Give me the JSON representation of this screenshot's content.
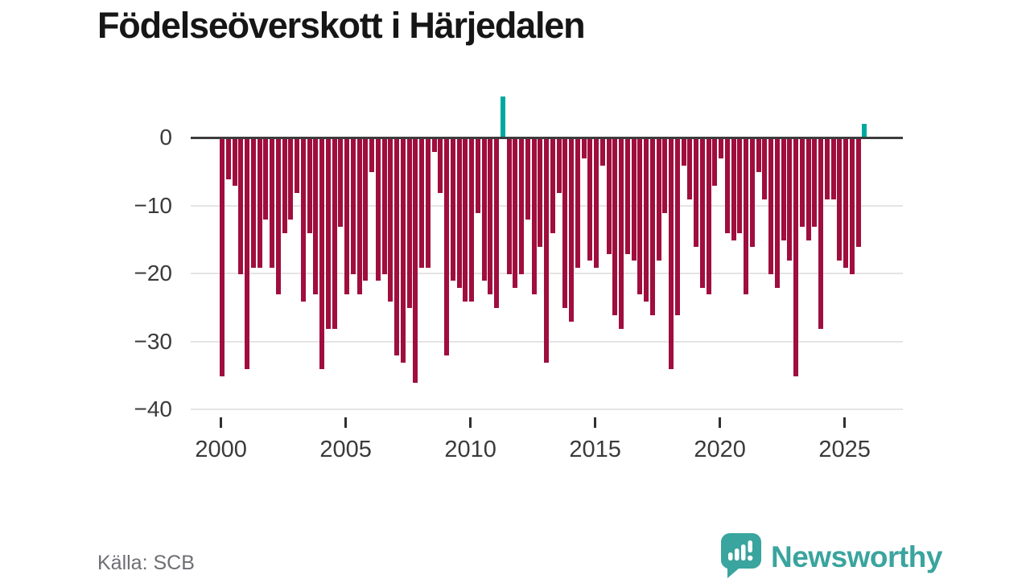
{
  "header": {
    "title": "Födelseöverskott i Härjedalen"
  },
  "footer": {
    "source": "Källa: SCB",
    "logo_text": "Newsworthy"
  },
  "colors": {
    "negative_bar": "#a00e3e",
    "positive_bar": "#00a9a0",
    "logo_teal": "#3aa49e",
    "axis_line": "#3d3d3d",
    "gridline": "#e4e4e4",
    "title_text": "#161616",
    "tick_text": "#3a3a3a",
    "source_text": "#6e6e75"
  },
  "chart_data": {
    "type": "bar",
    "title": "Födelseöverskott i Härjedalen",
    "frequency": "quarterly",
    "x_start": "2000-Q1",
    "x_end": "2025-Q4",
    "xlabel": "",
    "ylabel": "",
    "ylim": [
      -40,
      7
    ],
    "grid": "horizontal",
    "legend": "none",
    "y_ticks": [
      {
        "label": "0",
        "value": 0
      },
      {
        "label": "−10",
        "value": -10
      },
      {
        "label": "−20",
        "value": -20
      },
      {
        "label": "−30",
        "value": -30
      },
      {
        "label": "−40",
        "value": -40
      }
    ],
    "x_ticks": [
      2000,
      2005,
      2010,
      2015,
      2020,
      2025
    ],
    "series": [
      {
        "year": 2000,
        "values": [
          -35,
          -6,
          -7,
          -20
        ]
      },
      {
        "year": 2001,
        "values": [
          -34,
          -19,
          -19,
          -12
        ]
      },
      {
        "year": 2002,
        "values": [
          -19,
          -23,
          -14,
          -12
        ]
      },
      {
        "year": 2003,
        "values": [
          -8,
          -24,
          -14,
          -23
        ]
      },
      {
        "year": 2004,
        "values": [
          -34,
          -28,
          -28,
          -13
        ]
      },
      {
        "year": 2005,
        "values": [
          -23,
          -20,
          -23,
          -21
        ]
      },
      {
        "year": 2006,
        "values": [
          -5,
          -21,
          -20,
          -24
        ]
      },
      {
        "year": 2007,
        "values": [
          -32,
          -33,
          -25,
          -36
        ]
      },
      {
        "year": 2008,
        "values": [
          -19,
          -19,
          -2,
          -8
        ]
      },
      {
        "year": 2009,
        "values": [
          -32,
          -21,
          -22,
          -24
        ]
      },
      {
        "year": 2010,
        "values": [
          -24,
          -11,
          -21,
          -23
        ]
      },
      {
        "year": 2011,
        "values": [
          -25,
          6,
          -20,
          -22
        ]
      },
      {
        "year": 2012,
        "values": [
          -20,
          -12,
          -23,
          -16
        ]
      },
      {
        "year": 2013,
        "values": [
          -33,
          -14,
          -8,
          -25
        ]
      },
      {
        "year": 2014,
        "values": [
          -27,
          -19,
          -3,
          -18
        ]
      },
      {
        "year": 2015,
        "values": [
          -19,
          -4,
          -17,
          -26
        ]
      },
      {
        "year": 2016,
        "values": [
          -28,
          -17,
          -18,
          -23
        ]
      },
      {
        "year": 2017,
        "values": [
          -24,
          -26,
          -18,
          -11
        ]
      },
      {
        "year": 2018,
        "values": [
          -34,
          -26,
          -4,
          -9
        ]
      },
      {
        "year": 2019,
        "values": [
          -16,
          -22,
          -23,
          -7
        ]
      },
      {
        "year": 2020,
        "values": [
          -3,
          -14,
          -15,
          -14
        ]
      },
      {
        "year": 2021,
        "values": [
          -23,
          -16,
          -5,
          -9
        ]
      },
      {
        "year": 2022,
        "values": [
          -20,
          -22,
          -15,
          -18
        ]
      },
      {
        "year": 2023,
        "values": [
          -35,
          -13,
          -15,
          -13
        ]
      },
      {
        "year": 2024,
        "values": [
          -28,
          -9,
          -9,
          -18
        ]
      },
      {
        "year": 2025,
        "values": [
          -19,
          -20,
          -16,
          2
        ]
      }
    ]
  }
}
